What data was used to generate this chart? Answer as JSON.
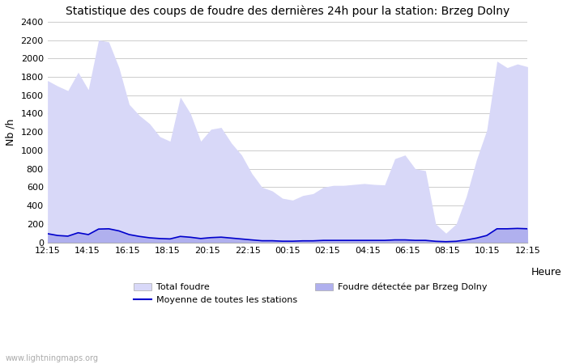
{
  "title": "Statistique des coups de foudre des dernières 24h pour la station: Brzeg Dolny",
  "ylabel": "Nb /h",
  "xlabel": "Heure",
  "ylim": [
    0,
    2400
  ],
  "yticks": [
    0,
    200,
    400,
    600,
    800,
    1000,
    1200,
    1400,
    1600,
    1800,
    2000,
    2200,
    2400
  ],
  "xtick_labels": [
    "12:15",
    "14:15",
    "16:15",
    "18:15",
    "20:15",
    "22:15",
    "00:15",
    "02:15",
    "04:15",
    "06:15",
    "08:15",
    "10:15",
    "12:15"
  ],
  "watermark": "www.lightningmaps.org",
  "total_foudre_color": "#d8d8f8",
  "brzeg_color": "#b0b0ee",
  "line_color": "#0000cc",
  "bg_color": "#ffffff",
  "grid_color": "#cccccc",
  "total_foudre": [
    1760,
    1700,
    1650,
    1850,
    1660,
    2200,
    2180,
    1900,
    1500,
    1380,
    1290,
    1150,
    1100,
    1580,
    1400,
    1100,
    1230,
    1250,
    1080,
    950,
    750,
    600,
    560,
    480,
    460,
    510,
    530,
    600,
    620,
    620,
    630,
    640,
    630,
    625,
    910,
    950,
    800,
    780,
    200,
    100,
    200,
    500,
    900,
    1220,
    1970,
    1900,
    1940,
    1910
  ],
  "brzeg_dolny": [
    100,
    80,
    70,
    110,
    90,
    150,
    155,
    130,
    90,
    70,
    55,
    45,
    40,
    70,
    60,
    45,
    55,
    60,
    50,
    40,
    30,
    20,
    20,
    15,
    15,
    20,
    20,
    25,
    25,
    25,
    25,
    25,
    25,
    25,
    30,
    30,
    25,
    25,
    15,
    10,
    15,
    30,
    50,
    80,
    155,
    155,
    160,
    155
  ],
  "moyenne": [
    95,
    75,
    68,
    105,
    85,
    145,
    148,
    125,
    85,
    65,
    50,
    42,
    38,
    65,
    56,
    42,
    52,
    57,
    47,
    37,
    27,
    18,
    18,
    13,
    13,
    17,
    17,
    22,
    22,
    22,
    22,
    22,
    22,
    22,
    27,
    27,
    22,
    22,
    12,
    8,
    12,
    27,
    47,
    75,
    148,
    148,
    152,
    148
  ],
  "figsize": [
    7.0,
    4.5
  ],
  "dpi": 100
}
